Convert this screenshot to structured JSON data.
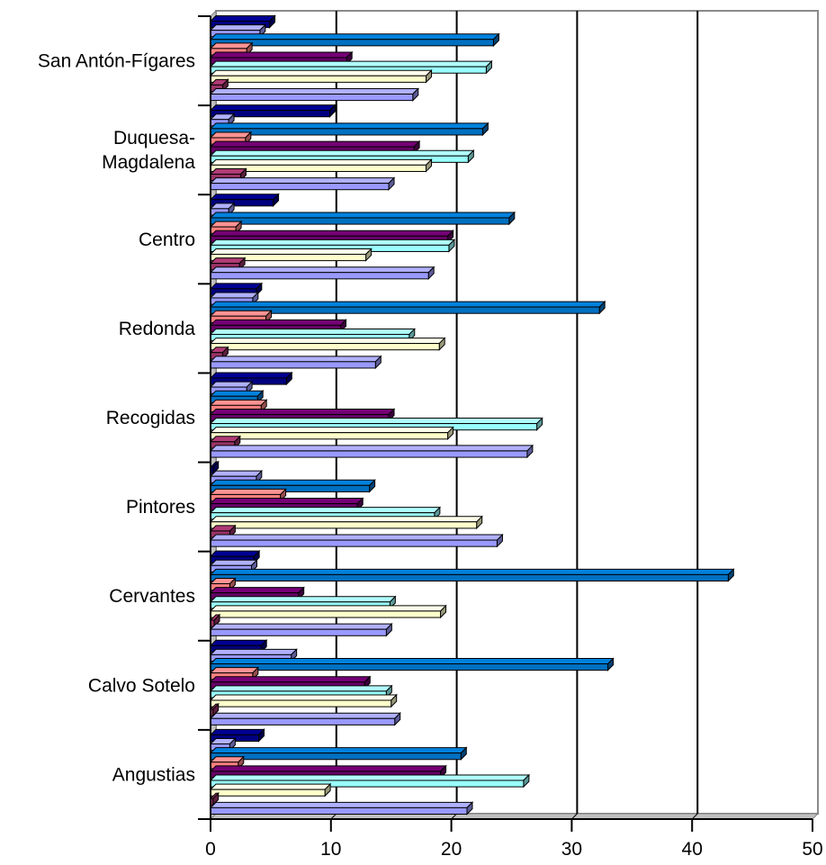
{
  "chart_data": {
    "type": "bar",
    "orientation": "horizontal",
    "style": "3d",
    "categories": [
      "San Antón-Fígares",
      "Duquesa-Magdalena",
      "Centro",
      "Redonda",
      "Recogidas",
      "Pintores",
      "Cervantes",
      "Calvo Sotelo",
      "Angustias"
    ],
    "category_lines": [
      [
        "San Antón-Fígares"
      ],
      [
        "Duquesa-",
        "Magdalena"
      ],
      [
        "Centro"
      ],
      [
        "Redonda"
      ],
      [
        "Recogidas"
      ],
      [
        "Pintores"
      ],
      [
        "Cervantes"
      ],
      [
        "Calvo Sotelo"
      ],
      [
        "Angustias"
      ]
    ],
    "series": [
      {
        "color": "#000080",
        "values": [
          4.9,
          9.9,
          5.2,
          3.8,
          6.3,
          0.2,
          3.6,
          4.2,
          4.0
        ]
      },
      {
        "color": "#9999FF",
        "values": [
          4.1,
          1.5,
          1.5,
          3.5,
          3.0,
          3.8,
          3.4,
          6.7,
          1.6
        ]
      },
      {
        "color": "#0070C0",
        "values": [
          23.5,
          22.6,
          24.8,
          32.3,
          3.9,
          13.2,
          43.0,
          33.0,
          20.8
        ]
      },
      {
        "color": "#FF8080",
        "values": [
          3.0,
          2.9,
          2.1,
          4.6,
          4.2,
          5.8,
          1.6,
          3.5,
          2.3
        ]
      },
      {
        "color": "#660066",
        "values": [
          11.3,
          16.9,
          19.7,
          10.8,
          14.8,
          12.2,
          7.3,
          12.8,
          19.1
        ]
      },
      {
        "color": "#99FFFF",
        "values": [
          22.9,
          21.4,
          19.8,
          16.5,
          27.1,
          18.6,
          14.9,
          14.6,
          26.0
        ]
      },
      {
        "color": "#FFFFCC",
        "values": [
          17.9,
          17.9,
          12.9,
          19.0,
          19.7,
          22.1,
          19.1,
          15.0,
          9.5
        ]
      },
      {
        "color": "#993366",
        "values": [
          1.0,
          2.5,
          2.4,
          1.0,
          2.0,
          1.6,
          0.3,
          0.2,
          0.2
        ]
      },
      {
        "color": "#9999FF",
        "values": [
          16.8,
          14.8,
          18.1,
          13.7,
          26.3,
          23.8,
          14.6,
          15.3,
          21.3
        ]
      }
    ],
    "xlim": [
      0,
      50
    ],
    "xticks": [
      "0",
      "10",
      "20",
      "30",
      "40",
      "50"
    ],
    "xlabel": "",
    "ylabel": "",
    "title": "",
    "grid": "vertical major gridlines",
    "legend": "none"
  }
}
